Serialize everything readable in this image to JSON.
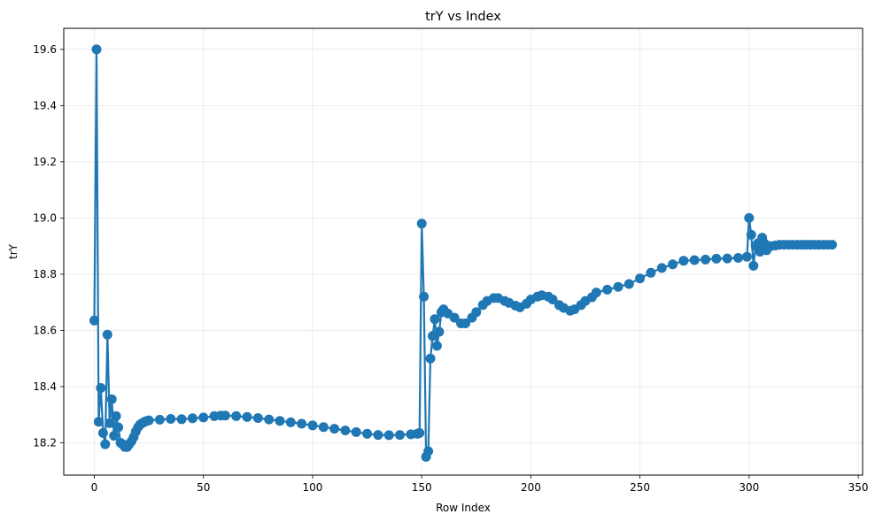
{
  "chart_data": {
    "type": "line",
    "title": "trY vs Index",
    "xlabel": "Row Index",
    "ylabel": "trY",
    "xlim": [
      -14,
      352
    ],
    "ylim": [
      18.085,
      19.675
    ],
    "xticks": [
      0,
      50,
      100,
      150,
      200,
      250,
      300,
      350
    ],
    "yticks": [
      18.2,
      18.4,
      18.6,
      18.8,
      19.0,
      19.2,
      19.4,
      19.6
    ],
    "grid": true,
    "legend": "none",
    "color": "#1f77b4",
    "marker": "circle",
    "series": [
      {
        "x": [
          0,
          1,
          2,
          3,
          4,
          5,
          6,
          7,
          8,
          9,
          10,
          11,
          12,
          13,
          14,
          15,
          16,
          17,
          18,
          19,
          20,
          21,
          22,
          23,
          24,
          25,
          30,
          35,
          40,
          45,
          50,
          55,
          58,
          60,
          65,
          70,
          75,
          80,
          85,
          90,
          95,
          100,
          105,
          110,
          115,
          120,
          125,
          130,
          135,
          140,
          145,
          148,
          149,
          150,
          151,
          152,
          153,
          154,
          155,
          156,
          157,
          158,
          159,
          160,
          162,
          165,
          168,
          170,
          173,
          175,
          178,
          180,
          183,
          185,
          188,
          190,
          193,
          195,
          198,
          200,
          203,
          205,
          208,
          210,
          213,
          215,
          218,
          220,
          223,
          225,
          228,
          230,
          235,
          240,
          245,
          250,
          255,
          260,
          265,
          270,
          275,
          280,
          285,
          290,
          295,
          299,
          300,
          301,
          302,
          303,
          304,
          305,
          306,
          307,
          308,
          310,
          312,
          314,
          316,
          318,
          320,
          322,
          324,
          326,
          328,
          330,
          332,
          334,
          336,
          338
        ],
        "y": [
          18.635,
          19.6,
          18.275,
          18.395,
          18.235,
          18.195,
          18.585,
          18.27,
          18.355,
          18.225,
          18.295,
          18.255,
          18.2,
          18.195,
          18.185,
          18.185,
          18.195,
          18.205,
          18.22,
          18.24,
          18.255,
          18.265,
          18.27,
          18.275,
          18.278,
          18.28,
          18.282,
          18.285,
          18.284,
          18.287,
          18.29,
          18.295,
          18.297,
          18.297,
          18.295,
          18.292,
          18.288,
          18.283,
          18.278,
          18.273,
          18.268,
          18.262,
          18.256,
          18.25,
          18.244,
          18.238,
          18.232,
          18.228,
          18.227,
          18.228,
          18.23,
          18.232,
          18.235,
          18.98,
          18.72,
          18.15,
          18.17,
          18.5,
          18.58,
          18.64,
          18.545,
          18.595,
          18.665,
          18.675,
          18.66,
          18.645,
          18.625,
          18.625,
          18.645,
          18.665,
          18.69,
          18.705,
          18.715,
          18.715,
          18.705,
          18.698,
          18.688,
          18.682,
          18.695,
          18.71,
          18.72,
          18.725,
          18.72,
          18.71,
          18.69,
          18.68,
          18.67,
          18.675,
          18.69,
          18.705,
          18.718,
          18.735,
          18.745,
          18.755,
          18.765,
          18.785,
          18.805,
          18.822,
          18.835,
          18.848,
          18.85,
          18.852,
          18.855,
          18.856,
          18.858,
          18.862,
          19.0,
          18.94,
          18.83,
          18.9,
          18.91,
          18.88,
          18.93,
          18.91,
          18.885,
          18.9,
          18.902,
          18.905,
          18.905,
          18.905,
          18.905,
          18.905,
          18.905,
          18.905,
          18.905,
          18.905,
          18.905,
          18.905,
          18.905,
          18.905
        ]
      }
    ]
  }
}
